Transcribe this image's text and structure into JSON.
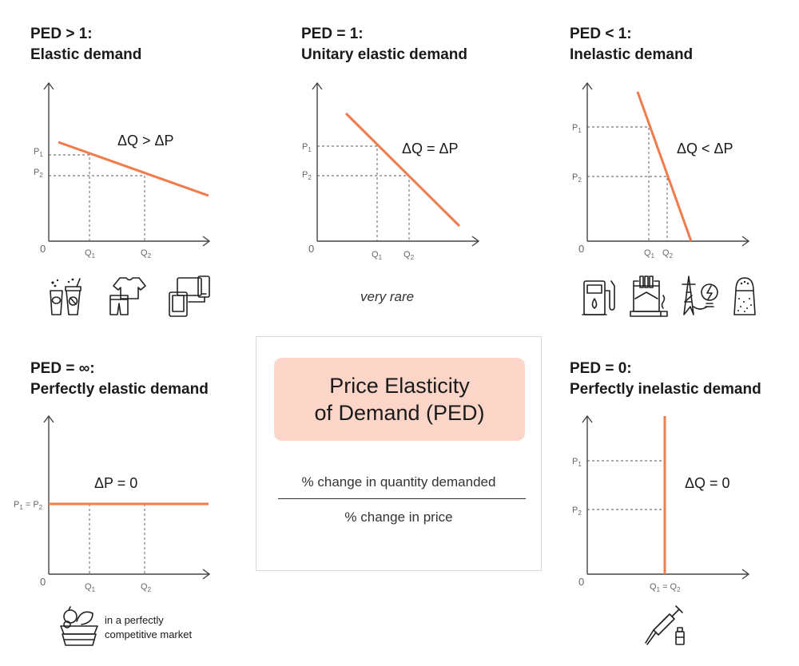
{
  "colors": {
    "curve": "#f07c4d",
    "title_box": "#fbd5c8",
    "axis": "#444444"
  },
  "panels": {
    "elastic": {
      "title1": "PED > 1:",
      "title2": "Elastic demand",
      "relation": "ΔQ > ΔP",
      "p1": "P",
      "p1_sub": "1",
      "p2": "P",
      "p2_sub": "2",
      "q1": "Q",
      "q1_sub": "1",
      "q2": "Q",
      "q2_sub": "2",
      "zero": "0"
    },
    "unitary": {
      "title1": "PED = 1:",
      "title2": "Unitary elastic demand",
      "relation": "ΔQ = ΔP",
      "p1": "P",
      "p1_sub": "1",
      "p2": "P",
      "p2_sub": "2",
      "q1": "Q",
      "q1_sub": "1",
      "q2": "Q",
      "q2_sub": "2",
      "zero": "0",
      "note": "very rare"
    },
    "inelastic": {
      "title1": "PED < 1:",
      "title2": "Inelastic demand",
      "relation": "ΔQ < ΔP",
      "p1": "P",
      "p1_sub": "1",
      "p2": "P",
      "p2_sub": "2",
      "q1": "Q",
      "q1_sub": "1",
      "q2": "Q",
      "q2_sub": "2",
      "zero": "0"
    },
    "perfectly_elastic": {
      "title1": "PED = ∞:",
      "title2": "Perfectly elastic demand",
      "relation": "ΔP = 0",
      "p": "P",
      "p_sub1": "1",
      "p_eq": " = P",
      "p_sub2": "2",
      "q1": "Q",
      "q1_sub": "1",
      "q2": "Q",
      "q2_sub": "2",
      "zero": "0",
      "note_line1": "in a perfectly",
      "note_line2": "competitive market"
    },
    "perfectly_inelastic": {
      "title1": "PED = 0:",
      "title2": "Perfectly inelastic demand",
      "relation": "ΔQ = 0",
      "p1": "P",
      "p1_sub": "1",
      "p2": "P",
      "p2_sub": "2",
      "q": "Q",
      "q_sub1": "1",
      "q_eq": " = Q",
      "q_sub2": "2",
      "zero": "0"
    }
  },
  "center": {
    "title_line1": "Price Elasticity",
    "title_line2": "of Demand (PED)",
    "numerator": "% change in quantity demanded",
    "denominator": "% change in price"
  },
  "icons": {
    "elastic": [
      "soft-drinks-icon",
      "clothing-icon",
      "electronics-devices-icon"
    ],
    "inelastic": [
      "fuel-pump-icon",
      "cigarettes-icon",
      "electricity-icon",
      "salt-shaker-icon"
    ],
    "perfectly_elastic": [
      "fruit-basket-icon"
    ],
    "perfectly_inelastic": [
      "syringe-vaccine-icon"
    ]
  }
}
